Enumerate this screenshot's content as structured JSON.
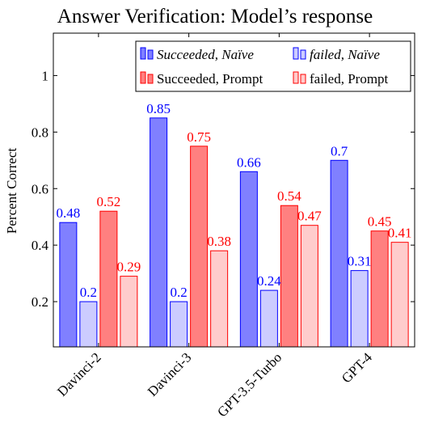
{
  "chart_data": {
    "type": "bar",
    "title": "Answer Verification: Model’s response",
    "ylabel": "Percent Correct",
    "xlabel": "",
    "categories": [
      "Davinci-2",
      "Davinci-3",
      "GPT-3.5-Turbo",
      "GPT-4"
    ],
    "ylim": [
      0.04,
      1.15
    ],
    "yticks": [
      0.2,
      0.4,
      0.6,
      0.8,
      1
    ],
    "grid": false,
    "legend_position": "top-right",
    "series": [
      {
        "name": "Succeeded, Naïve",
        "italic": true,
        "values": [
          0.48,
          0.85,
          0.66,
          0.7
        ],
        "value_labels": [
          "0.48",
          "0.85",
          "0.66",
          "0.7"
        ],
        "fill": "#8080ff",
        "stroke": "#0000ff",
        "label_color": "#0000ff"
      },
      {
        "name": "failed, Naïve",
        "italic": true,
        "values": [
          0.2,
          0.2,
          0.24,
          0.31
        ],
        "value_labels": [
          "0.2",
          "0.2",
          "0.24",
          "0.31"
        ],
        "fill": "#ccccff",
        "stroke": "#0000ff",
        "label_color": "#0000ff"
      },
      {
        "name": "Succeeded, Prompt",
        "italic": false,
        "values": [
          0.52,
          0.75,
          0.54,
          0.45
        ],
        "value_labels": [
          "0.52",
          "0.75",
          "0.54",
          "0.45"
        ],
        "fill": "#ff8080",
        "stroke": "#ff0000",
        "label_color": "#ff0000"
      },
      {
        "name": "failed, Prompt",
        "italic": false,
        "values": [
          0.29,
          0.38,
          0.47,
          0.41
        ],
        "value_labels": [
          "0.29",
          "0.38",
          "0.47",
          "0.41"
        ],
        "fill": "#ffcccc",
        "stroke": "#ff0000",
        "label_color": "#ff0000"
      }
    ]
  }
}
